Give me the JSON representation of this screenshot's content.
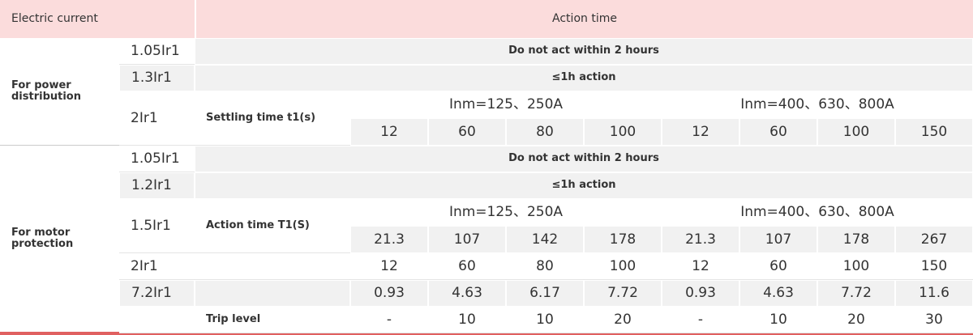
{
  "header": {
    "current": "Electric current",
    "action": "Action time"
  },
  "sections": [
    {
      "label": "For power distribution",
      "rows": [
        {
          "current": "1.05Ir1",
          "text": "Do not act within 2 hours"
        },
        {
          "current": "1.3Ir1",
          "text": "≤1h action"
        },
        {
          "current": "2Ir1",
          "param": "Settling time t1(s)",
          "groups": [
            "Inm=125、250A",
            "Inm=400、630、800A"
          ],
          "values": [
            12,
            60,
            80,
            100,
            12,
            60,
            100,
            150
          ]
        }
      ]
    },
    {
      "label": "For motor protection",
      "rows": [
        {
          "current": "1.05Ir1",
          "text": "Do not act within 2 hours"
        },
        {
          "current": "1.2Ir1",
          "text": "≤1h action"
        },
        {
          "current": "1.5Ir1",
          "param": "Action time T1(S)",
          "groups": [
            "Inm=125、250A",
            "Inm=400、630、800A"
          ],
          "values": [
            21.3,
            107,
            142,
            178,
            21.3,
            107,
            178,
            267
          ]
        },
        {
          "current": "2Ir1",
          "values": [
            12,
            60,
            80,
            100,
            12,
            60,
            100,
            150
          ]
        },
        {
          "current": "7.2Ir1",
          "values": [
            0.93,
            4.63,
            6.17,
            7.72,
            0.93,
            4.63,
            7.72,
            11.6
          ]
        },
        {
          "param": "Trip level",
          "values": [
            "-",
            10,
            10,
            20,
            "-",
            10,
            20,
            30
          ]
        }
      ]
    }
  ]
}
